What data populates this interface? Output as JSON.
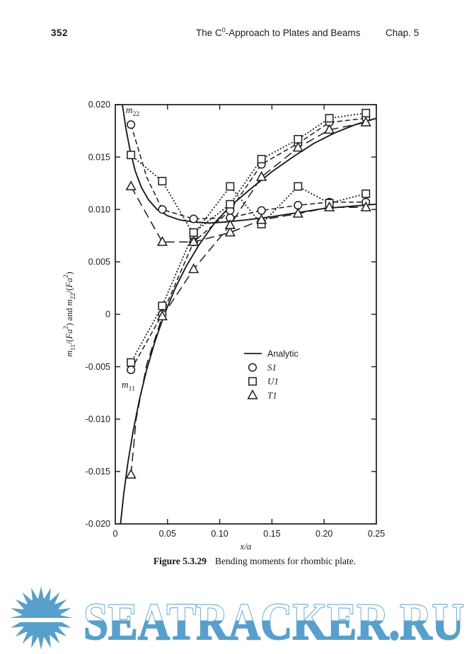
{
  "page": {
    "number": "352",
    "head_pre": "The C",
    "head_sup": "0",
    "head_post": "-Approach to Plates and Beams",
    "chapter": "Chap. 5"
  },
  "caption": {
    "label": "Figure 5.3.29",
    "text": "Bending moments for rhombic plate."
  },
  "watermark": {
    "text": "SEATRACKER.RU",
    "color": "#58a0cb"
  },
  "chart_data": {
    "type": "line",
    "title": "",
    "xlabel": "x/a",
    "ylabel": "m11/(Fa2) and m22/(Fa2)",
    "ylabel_rich": [
      [
        "m",
        "i"
      ],
      [
        "11",
        "sub"
      ],
      [
        "/(",
        "n"
      ],
      [
        "Fa",
        "i"
      ],
      [
        "2",
        "sup"
      ],
      [
        ") and ",
        "n"
      ],
      [
        "m",
        "i"
      ],
      [
        "22",
        "sub"
      ],
      [
        "/(",
        "n"
      ],
      [
        "Fa",
        "i"
      ],
      [
        "2",
        "sup"
      ],
      [
        ")",
        "n"
      ]
    ],
    "xlim": [
      0,
      0.25
    ],
    "ylim": [
      -0.02,
      0.02
    ],
    "grid": false,
    "xticks": {
      "values": [
        0,
        0.05,
        0.1,
        0.15,
        0.2,
        0.25
      ],
      "labels": [
        "0",
        "0.05",
        "0.10",
        "0.15",
        "0.20",
        "0.25"
      ]
    },
    "yticks": {
      "values": [
        0.02,
        0.015,
        0.01,
        0.005,
        0,
        -0.005,
        -0.01,
        -0.015,
        -0.02
      ],
      "labels": [
        "0.020",
        "0.015",
        "0.010",
        "0.005",
        "0",
        "-0.005",
        "-0.010",
        "-0.015",
        "-0.020"
      ]
    },
    "annotations": [
      {
        "rich": [
          [
            "m",
            "i"
          ],
          [
            "22",
            "sub"
          ]
        ],
        "x": 0.01,
        "y": 0.0192
      },
      {
        "rich": [
          [
            "m",
            "i"
          ],
          [
            "11",
            "sub"
          ]
        ],
        "x": 0.006,
        "y": -0.007
      }
    ],
    "legend": {
      "position": "inside-center-right",
      "items": [
        {
          "label": "Analytic",
          "marker": "line",
          "italic": false
        },
        {
          "label": "S1",
          "marker": "circle",
          "italic": true
        },
        {
          "label": "U1",
          "marker": "square",
          "italic": true
        },
        {
          "label": "T1",
          "marker": "triangle",
          "italic": true
        }
      ]
    },
    "series": [
      {
        "name": "analytic-m22",
        "style": "solid",
        "marker": "none",
        "x": [
          0.0068,
          0.01,
          0.014,
          0.019,
          0.025,
          0.032,
          0.04,
          0.05,
          0.062,
          0.075,
          0.09,
          0.105,
          0.125,
          0.15,
          0.175,
          0.2,
          0.225,
          0.25
        ],
        "y": [
          0.02,
          0.0178,
          0.0157,
          0.0137,
          0.0121,
          0.0109,
          0.01,
          0.0094,
          0.009,
          0.0088,
          0.0087,
          0.0088,
          0.009,
          0.0093,
          0.0097,
          0.0101,
          0.0103,
          0.0105
        ]
      },
      {
        "name": "analytic-m11",
        "style": "solid",
        "marker": "none",
        "x": [
          0.005,
          0.008,
          0.012,
          0.017,
          0.023,
          0.03,
          0.038,
          0.047,
          0.057,
          0.068,
          0.08,
          0.095,
          0.11,
          0.13,
          0.15,
          0.17,
          0.19,
          0.21,
          0.23,
          0.25
        ],
        "y": [
          -0.02,
          -0.0172,
          -0.0142,
          -0.0112,
          -0.0082,
          -0.0053,
          -0.0026,
          0.0,
          0.0024,
          0.0046,
          0.0066,
          0.0087,
          0.0103,
          0.012,
          0.0136,
          0.015,
          0.0163,
          0.0173,
          0.0181,
          0.0187
        ]
      },
      {
        "name": "S1-m22",
        "style": "dashed",
        "marker": "circle",
        "x": [
          0.015,
          0.03,
          0.045,
          0.075,
          0.11,
          0.14,
          0.175,
          0.205,
          0.24
        ],
        "y": [
          0.0181,
          0.0131,
          0.01,
          0.0091,
          0.0092,
          0.0099,
          0.0104,
          0.0107,
          0.0107
        ],
        "marker_x": [
          0.015,
          0.045,
          0.075,
          0.11,
          0.14,
          0.175,
          0.205,
          0.24
        ],
        "marker_y": [
          0.0181,
          0.01,
          0.0091,
          0.0092,
          0.0099,
          0.0104,
          0.0107,
          0.0107
        ]
      },
      {
        "name": "S1-m11",
        "style": "dashed",
        "marker": "circle",
        "x": [
          0.015,
          0.045,
          0.075,
          0.11,
          0.14,
          0.175,
          0.205,
          0.24
        ],
        "y": [
          -0.0053,
          0.0,
          0.0069,
          0.0099,
          0.0143,
          0.0163,
          0.0183,
          0.0187
        ]
      },
      {
        "name": "U1-m22",
        "style": "dotted",
        "marker": "square",
        "x": [
          0.015,
          0.045,
          0.075,
          0.11,
          0.14,
          0.175,
          0.205,
          0.24
        ],
        "y": [
          0.0152,
          0.0127,
          0.0076,
          0.0122,
          0.0086,
          0.0122,
          0.0106,
          0.0115
        ]
      },
      {
        "name": "U1-m11",
        "style": "dotted",
        "marker": "square",
        "x": [
          0.015,
          0.045,
          0.075,
          0.11,
          0.14,
          0.175,
          0.205,
          0.24
        ],
        "y": [
          -0.0046,
          0.0008,
          0.0078,
          0.0105,
          0.0148,
          0.0167,
          0.0187,
          0.0192
        ]
      },
      {
        "name": "T1-m22",
        "style": "longdash",
        "marker": "triangle",
        "x": [
          0.015,
          0.045,
          0.075,
          0.11,
          0.14,
          0.175,
          0.205,
          0.24
        ],
        "y": [
          0.0122,
          0.0069,
          0.0069,
          0.0078,
          0.009,
          0.0096,
          0.0102,
          0.0102
        ]
      },
      {
        "name": "T1-m11",
        "style": "longdash",
        "marker": "triangle",
        "x": [
          0.015,
          0.02,
          0.03,
          0.045,
          0.075,
          0.11,
          0.14,
          0.175,
          0.205,
          0.24
        ],
        "y": [
          -0.0153,
          -0.01,
          -0.0048,
          -0.0002,
          0.0043,
          0.0085,
          0.0131,
          0.0159,
          0.0176,
          0.0183
        ],
        "marker_x": [
          0.015,
          0.045,
          0.075,
          0.11,
          0.14,
          0.175,
          0.205,
          0.24
        ],
        "marker_y": [
          -0.0153,
          -0.0002,
          0.0043,
          0.0085,
          0.0131,
          0.0159,
          0.0176,
          0.0183
        ]
      }
    ]
  }
}
